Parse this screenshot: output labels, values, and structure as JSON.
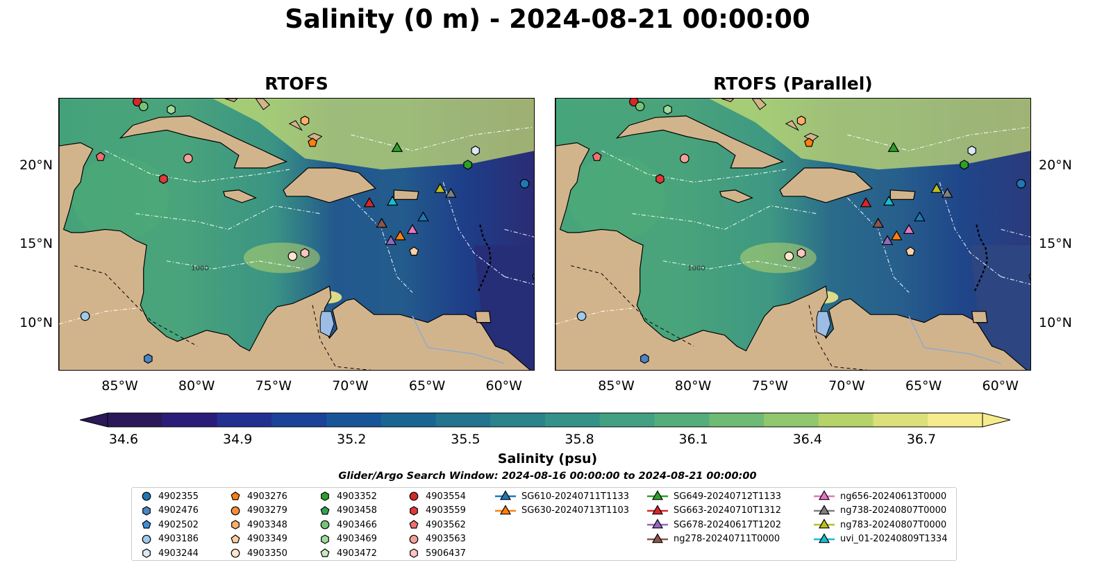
{
  "title": "Salinity (0 m) - 2024-08-21 00:00:00",
  "panels": [
    {
      "title": "RTOFS"
    },
    {
      "title": "RTOFS (Parallel)"
    }
  ],
  "map": {
    "extent_lon": [
      -89,
      -58
    ],
    "extent_lat": [
      7,
      24.3
    ],
    "lon_ticks": [
      "85°W",
      "80°W",
      "75°W",
      "70°W",
      "65°W",
      "60°W"
    ],
    "lat_ticks_left": [
      "20°N",
      "15°N",
      "10°N"
    ],
    "lat_ticks_right": [
      "20°N",
      "15°N",
      "10°N"
    ],
    "land_color": "#d2b48c",
    "contour_label": "1000"
  },
  "colorbar": {
    "label": "Salinity (psu)",
    "ticks": [
      "34.6",
      "34.9",
      "35.2",
      "35.5",
      "35.8",
      "36.1",
      "36.4",
      "36.7"
    ],
    "range": [
      34.6,
      36.7
    ],
    "colormap": "haline",
    "extend": "both"
  },
  "search_window": "Glider/Argo Search Window: 2024-08-16 00:00:00 to 2024-08-21 00:00:00",
  "legend": {
    "columns": [
      [
        {
          "label": "4902355",
          "marker": "circle",
          "color": "#1f77b4"
        },
        {
          "label": "4902476",
          "marker": "hexagon",
          "color": "#4a86c5"
        },
        {
          "label": "4902502",
          "marker": "pentagon",
          "color": "#3f8fd8"
        },
        {
          "label": "4903186",
          "marker": "circle",
          "color": "#9ecae9"
        },
        {
          "label": "4903244",
          "marker": "hexagon",
          "color": "#dbe9f6"
        }
      ],
      [
        {
          "label": "4903276",
          "marker": "pentagon",
          "color": "#ff7f0e"
        },
        {
          "label": "4903279",
          "marker": "circle",
          "color": "#fd8d3c"
        },
        {
          "label": "4903348",
          "marker": "hexagon",
          "color": "#fdae6b"
        },
        {
          "label": "4903349",
          "marker": "pentagon",
          "color": "#fdd0a2"
        },
        {
          "label": "4903350",
          "marker": "circle",
          "color": "#fee6ce"
        }
      ],
      [
        {
          "label": "4903352",
          "marker": "hexagon",
          "color": "#2ca02c"
        },
        {
          "label": "4903458",
          "marker": "pentagon",
          "color": "#31a354"
        },
        {
          "label": "4903466",
          "marker": "circle",
          "color": "#74c476"
        },
        {
          "label": "4903469",
          "marker": "hexagon",
          "color": "#a1d99b"
        },
        {
          "label": "4903472",
          "marker": "pentagon",
          "color": "#c7e9c0"
        }
      ],
      [
        {
          "label": "4903554",
          "marker": "circle",
          "color": "#d62728"
        },
        {
          "label": "4903559",
          "marker": "hexagon",
          "color": "#de3a3a"
        },
        {
          "label": "4903562",
          "marker": "pentagon",
          "color": "#f07070"
        },
        {
          "label": "4903563",
          "marker": "circle",
          "color": "#f4a09a"
        },
        {
          "label": "5906437",
          "marker": "hexagon",
          "color": "#fcc5c0"
        }
      ],
      [
        {
          "label": "SG610-20240711T1133",
          "marker": "triangle",
          "color": "#1f77b4"
        },
        {
          "label": "SG630-20240713T1103",
          "marker": "triangle",
          "color": "#ff7f0e"
        }
      ],
      [
        {
          "label": "SG649-20240712T1133",
          "marker": "triangle",
          "color": "#2ca02c"
        },
        {
          "label": "SG663-20240710T1312",
          "marker": "triangle",
          "color": "#d62728"
        },
        {
          "label": "SG678-20240617T1202",
          "marker": "triangle",
          "color": "#9467bd"
        },
        {
          "label": "ng278-20240711T0000",
          "marker": "triangle",
          "color": "#8c564b"
        }
      ],
      [
        {
          "label": "ng656-20240613T0000",
          "marker": "triangle",
          "color": "#e377c2"
        },
        {
          "label": "ng738-20240807T0000",
          "marker": "triangle",
          "color": "#7f7f7f"
        },
        {
          "label": "ng783-20240807T0000",
          "marker": "triangle",
          "color": "#bcbd22"
        },
        {
          "label": "uvi_01-20240809T1334",
          "marker": "triangle",
          "color": "#17becf"
        }
      ]
    ]
  },
  "observations": [
    {
      "id": "4903554",
      "lon": -83.9,
      "lat": 24.1
    },
    {
      "id": "4903466",
      "lon": -83.5,
      "lat": 23.8
    },
    {
      "id": "4903469",
      "lon": -81.7,
      "lat": 23.6
    },
    {
      "id": "4903348",
      "lon": -73.0,
      "lat": 22.9
    },
    {
      "id": "4903276",
      "lon": -72.5,
      "lat": 21.5
    },
    {
      "id": "4903244",
      "lon": -61.9,
      "lat": 21.0
    },
    {
      "id": "4903352",
      "lon": -62.4,
      "lat": 20.1
    },
    {
      "id": "4902355",
      "lon": -58.7,
      "lat": 18.9
    },
    {
      "id": "4903562",
      "lon": -86.3,
      "lat": 20.6
    },
    {
      "id": "4903563",
      "lon": -80.6,
      "lat": 20.5
    },
    {
      "id": "4903559",
      "lon": -82.2,
      "lat": 19.2
    },
    {
      "id": "4903350",
      "lon": -73.8,
      "lat": 14.3
    },
    {
      "id": "5906437",
      "lon": -73.0,
      "lat": 14.5
    },
    {
      "id": "4903349",
      "lon": -65.9,
      "lat": 14.6
    },
    {
      "id": "4903458",
      "lon": -57.9,
      "lat": 13.0
    },
    {
      "id": "4903186",
      "lon": -87.3,
      "lat": 10.5
    },
    {
      "id": "4902476",
      "lon": -83.2,
      "lat": 7.8
    },
    {
      "id": "SG649-20240712T1133",
      "lon": -67.0,
      "lat": 21.2
    },
    {
      "id": "ng783-20240807T0000",
      "lon": -64.2,
      "lat": 18.6
    },
    {
      "id": "ng738-20240807T0000",
      "lon": -63.5,
      "lat": 18.3
    },
    {
      "id": "SG663-20240710T1312",
      "lon": -68.8,
      "lat": 17.7
    },
    {
      "id": "uvi_01-20240809T1334",
      "lon": -67.3,
      "lat": 17.8
    },
    {
      "id": "SG610-20240711T1133",
      "lon": -65.3,
      "lat": 16.8
    },
    {
      "id": "ng278-20240711T0000",
      "lon": -68.0,
      "lat": 16.4
    },
    {
      "id": "ng656-20240613T0000",
      "lon": -66.0,
      "lat": 16.0
    },
    {
      "id": "SG630-20240713T1103",
      "lon": -66.8,
      "lat": 15.6
    },
    {
      "id": "SG678-20240617T1202",
      "lon": -67.4,
      "lat": 15.3
    }
  ]
}
